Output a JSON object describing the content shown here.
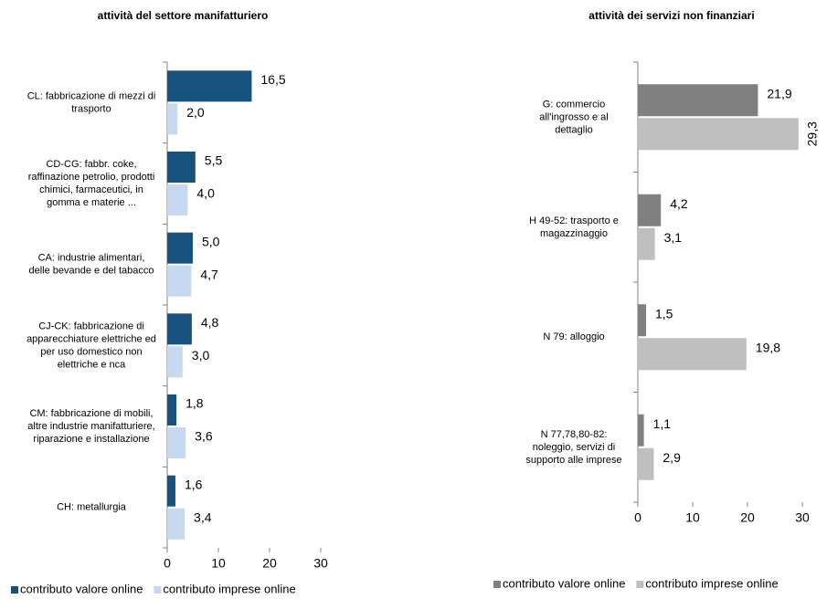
{
  "chart_data": [
    {
      "type": "bar",
      "orientation": "horizontal",
      "title": "attività del settore manifatturiero",
      "categories": [
        "CL: fabbricazione di mezzi di\ntrasporto",
        "CD-CG:  fabbr. coke,\nraffinazione  petrolio, prodotti\nchimici, farmaceutici, in\ngomma  e materie ...",
        "CA: industrie alimentari,\ndelle bevande e del tabacco",
        "CJ-CK: fabbricazione di\napparecchiature elettriche ed\nper uso domestico non\nelettriche e nca",
        "CM: fabbricazione di mobili,\naltre industrie manifatturiere,\nriparazione e installazione",
        "CH: metallurgia"
      ],
      "series": [
        {
          "name": "contributo valore online",
          "color": "#17527f",
          "values": [
            16.5,
            5.5,
            5.0,
            4.8,
            1.8,
            1.6
          ],
          "value_labels": [
            "16,5",
            "5,5",
            "5,0",
            "4,8",
            "1,8",
            "1,6"
          ]
        },
        {
          "name": "contributo imprese online",
          "color": "#c6d9f1",
          "values": [
            2.0,
            4.0,
            4.7,
            3.0,
            3.6,
            3.4
          ],
          "value_labels": [
            "2,0",
            "4,0",
            "4,7",
            "3,0",
            "3,6",
            "3,4"
          ]
        }
      ],
      "xlim": [
        0,
        30
      ],
      "xticks": [
        0,
        10,
        20,
        30
      ],
      "legend": "bottom"
    },
    {
      "type": "bar",
      "orientation": "horizontal",
      "title": "attività dei servizi non finanziari",
      "categories": [
        "G: commercio\nall'ingrosso e al\ndettaglio",
        "H 49-52: trasporto e\nmagazzinaggio",
        "N 79: alloggio",
        "N 77,78,80-82:\nnoleggio, servizi di\nsupporto alle imprese"
      ],
      "series": [
        {
          "name": "contributo valore online",
          "color": "#808080",
          "values": [
            21.9,
            4.2,
            1.5,
            1.1
          ],
          "value_labels": [
            "21,9",
            "4,2",
            "1,5",
            "1,1"
          ]
        },
        {
          "name": "contributo imprese online",
          "color": "#bfbfbf",
          "values": [
            29.3,
            3.1,
            19.8,
            2.9
          ],
          "value_labels": [
            "29,3",
            "3,1",
            "19,8",
            "2,9"
          ]
        }
      ],
      "xlim": [
        0,
        30
      ],
      "xticks": [
        0,
        10,
        20,
        30
      ],
      "legend": "bottom"
    }
  ]
}
